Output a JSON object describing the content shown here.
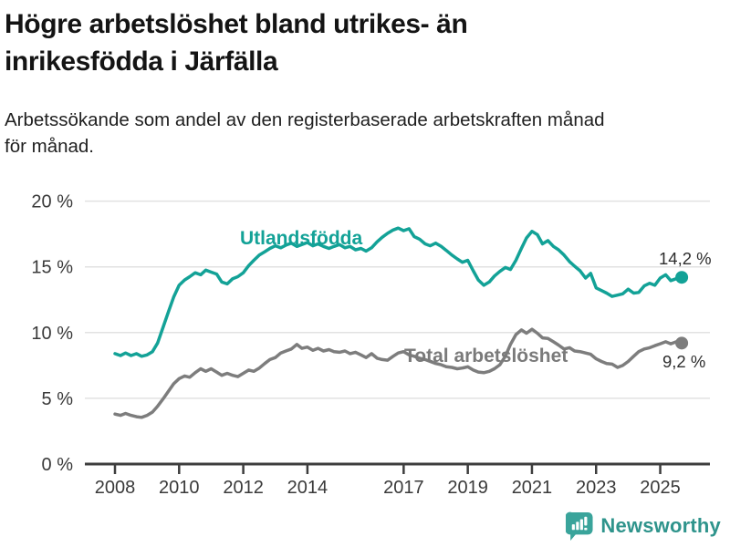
{
  "header": {
    "title": "Högre arbetslöshet bland utrikes- än\ninrikesfödda i Järfälla",
    "subtitle": "Arbetssökande som andel av den registerbaserade arbetskraften månad\nför månad."
  },
  "footer": {
    "brand": "Newsworthy"
  },
  "colors": {
    "series_foreign_born": "#13a297",
    "series_total": "#7d7d7d",
    "grid": "#e2e2e2",
    "axis": "#3d3d3d",
    "brand_icon": "#3aa49b",
    "brand_text": "#2f948c"
  },
  "chart_data": {
    "type": "line",
    "title": "Högre arbetslöshet bland utrikes- än inrikesfödda i Järfälla",
    "subtitle": "Arbetssökande som andel av den registerbaserade arbetskraften månad för månad.",
    "xlabel": "",
    "ylabel": "",
    "ylim": [
      0,
      21.5
    ],
    "xlim": [
      2007.1,
      2026.5
    ],
    "grid": "horizontal",
    "legend_position": "inline-labels",
    "y_ticks": [
      0,
      5,
      10,
      15,
      20
    ],
    "y_tick_labels": [
      "0 %",
      "5 %",
      "10 %",
      "15 %",
      "20 %"
    ],
    "x_ticks": [
      2008,
      2010,
      2012,
      2014,
      2017,
      2019,
      2021,
      2023,
      2025
    ],
    "x": [
      2008.0,
      2008.17,
      2008.33,
      2008.5,
      2008.67,
      2008.83,
      2009.0,
      2009.17,
      2009.33,
      2009.5,
      2009.67,
      2009.83,
      2010.0,
      2010.17,
      2010.33,
      2010.5,
      2010.67,
      2010.83,
      2011.0,
      2011.17,
      2011.33,
      2011.5,
      2011.67,
      2011.83,
      2012.0,
      2012.17,
      2012.33,
      2012.5,
      2012.67,
      2012.83,
      2013.0,
      2013.17,
      2013.33,
      2013.5,
      2013.67,
      2013.83,
      2014.0,
      2014.17,
      2014.33,
      2014.5,
      2014.67,
      2014.83,
      2015.0,
      2015.17,
      2015.33,
      2015.5,
      2015.67,
      2015.83,
      2016.0,
      2016.17,
      2016.33,
      2016.5,
      2016.67,
      2016.83,
      2017.0,
      2017.17,
      2017.33,
      2017.5,
      2017.67,
      2017.83,
      2018.0,
      2018.17,
      2018.33,
      2018.5,
      2018.67,
      2018.83,
      2019.0,
      2019.17,
      2019.33,
      2019.5,
      2019.67,
      2019.83,
      2020.0,
      2020.17,
      2020.33,
      2020.5,
      2020.67,
      2020.83,
      2021.0,
      2021.17,
      2021.33,
      2021.5,
      2021.67,
      2021.83,
      2022.0,
      2022.17,
      2022.33,
      2022.5,
      2022.67,
      2022.83,
      2023.0,
      2023.17,
      2023.33,
      2023.5,
      2023.67,
      2023.83,
      2024.0,
      2024.17,
      2024.33,
      2024.5,
      2024.67,
      2024.83,
      2025.0,
      2025.17,
      2025.33,
      2025.5,
      2025.67
    ],
    "series": [
      {
        "name": "Utlandsfödda",
        "color": "#13a297",
        "end_label": "14,2 %",
        "end_value": 14.2,
        "values": [
          8.4,
          8.25,
          8.45,
          8.25,
          8.4,
          8.2,
          8.3,
          8.55,
          9.2,
          10.4,
          11.6,
          12.7,
          13.6,
          14.0,
          14.25,
          14.55,
          14.4,
          14.75,
          14.6,
          14.45,
          13.85,
          13.7,
          14.1,
          14.25,
          14.55,
          15.1,
          15.5,
          15.9,
          16.15,
          16.4,
          16.6,
          16.45,
          16.65,
          16.8,
          16.55,
          16.7,
          16.85,
          16.6,
          16.75,
          16.55,
          16.4,
          16.55,
          16.7,
          16.45,
          16.55,
          16.3,
          16.4,
          16.2,
          16.45,
          16.9,
          17.25,
          17.55,
          17.8,
          17.95,
          17.75,
          17.9,
          17.3,
          17.1,
          16.75,
          16.6,
          16.8,
          16.55,
          16.25,
          15.9,
          15.6,
          15.35,
          15.5,
          14.7,
          14.0,
          13.6,
          13.85,
          14.3,
          14.65,
          14.95,
          14.8,
          15.5,
          16.4,
          17.2,
          17.7,
          17.45,
          16.75,
          17.0,
          16.55,
          16.3,
          15.9,
          15.4,
          15.05,
          14.7,
          14.15,
          14.5,
          13.4,
          13.2,
          13.0,
          12.75,
          12.85,
          12.95,
          13.3,
          13.0,
          13.05,
          13.55,
          13.75,
          13.6,
          14.15,
          14.4,
          13.95,
          14.1,
          14.2
        ]
      },
      {
        "name": "Total arbetslöshet",
        "color": "#7d7d7d",
        "end_label": "9,2 %",
        "end_value": 9.2,
        "values": [
          3.8,
          3.7,
          3.85,
          3.7,
          3.6,
          3.55,
          3.7,
          3.95,
          4.4,
          4.95,
          5.55,
          6.1,
          6.5,
          6.7,
          6.6,
          6.95,
          7.25,
          7.05,
          7.25,
          7.0,
          6.75,
          6.9,
          6.75,
          6.65,
          6.9,
          7.15,
          7.05,
          7.3,
          7.65,
          7.95,
          8.1,
          8.45,
          8.6,
          8.75,
          9.1,
          8.8,
          8.9,
          8.65,
          8.8,
          8.6,
          8.7,
          8.55,
          8.5,
          8.6,
          8.4,
          8.5,
          8.3,
          8.1,
          8.4,
          8.05,
          7.95,
          7.9,
          8.2,
          8.45,
          8.55,
          8.3,
          8.2,
          8.05,
          7.95,
          7.8,
          7.65,
          7.55,
          7.4,
          7.35,
          7.25,
          7.3,
          7.4,
          7.15,
          7.0,
          6.95,
          7.05,
          7.25,
          7.55,
          8.2,
          9.1,
          9.85,
          10.2,
          9.95,
          10.25,
          9.95,
          9.6,
          9.55,
          9.3,
          9.05,
          8.75,
          8.85,
          8.6,
          8.55,
          8.45,
          8.35,
          8.0,
          7.8,
          7.65,
          7.6,
          7.35,
          7.5,
          7.8,
          8.2,
          8.55,
          8.75,
          8.85,
          9.0,
          9.15,
          9.3,
          9.15,
          9.3,
          9.2
        ]
      }
    ]
  }
}
